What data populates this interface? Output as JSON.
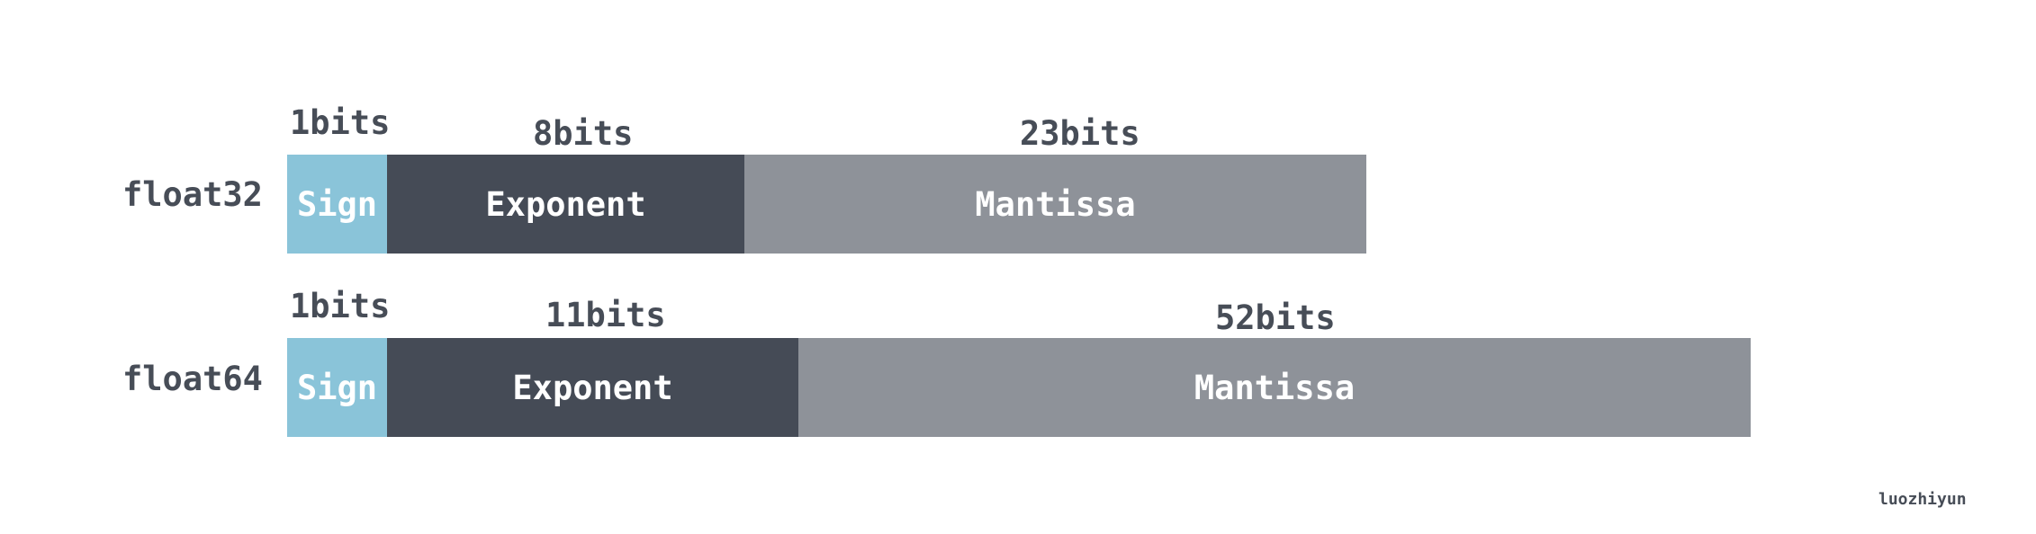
{
  "colors": {
    "sign": "#8ac4d9",
    "exponent": "#454b56",
    "mantissa": "#8e9299",
    "text": "#474d57",
    "segment_text": "#ffffff"
  },
  "float32": {
    "label": "float32",
    "sign": {
      "bits_label": "1bits",
      "text": "Sign"
    },
    "exponent": {
      "bits_label": "8bits",
      "text": "Exponent"
    },
    "mantissa": {
      "bits_label": "23bits",
      "text": "Mantissa"
    }
  },
  "float64": {
    "label": "float64",
    "sign": {
      "bits_label": "1bits",
      "text": "Sign"
    },
    "exponent": {
      "bits_label": "11bits",
      "text": "Exponent"
    },
    "mantissa": {
      "bits_label": "52bits",
      "text": "Mantissa"
    }
  },
  "credit": "luozhiyun"
}
